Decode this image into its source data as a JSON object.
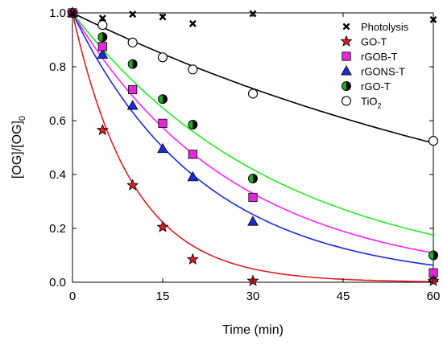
{
  "chart_data": {
    "type": "scatter",
    "xlabel": "Time (min)",
    "ylabel": {
      "main": "[OG]/[OG]",
      "sub": "0"
    },
    "xlim": [
      0,
      60
    ],
    "ylim": [
      0,
      1.0
    ],
    "xticks": [
      0,
      15,
      30,
      45,
      60
    ],
    "xtick_labels": [
      "0",
      "15",
      "30",
      "45",
      "60"
    ],
    "yticks": [
      0,
      0.2,
      0.4,
      0.6,
      0.8,
      1.0
    ],
    "ytick_labels": [
      "0.0",
      "0.2",
      "0.4",
      "0.6",
      "0.8",
      "1.0"
    ],
    "grid": false,
    "legend_position": "top-right",
    "series": [
      {
        "name": "Photolysis",
        "label_main": "Photolysis",
        "label_sub": "",
        "marker": "x",
        "color": "#000000",
        "fit": null,
        "x": [
          0,
          5,
          10,
          15,
          20,
          30,
          60
        ],
        "y": [
          1.0,
          0.98,
          0.995,
          0.985,
          0.96,
          0.997,
          0.975
        ]
      },
      {
        "name": "GO-T",
        "label_main": "GO-T",
        "label_sub": "",
        "marker": "star",
        "color": "#d42020",
        "fit": 0.1,
        "x": [
          0,
          5,
          10,
          15,
          20,
          30,
          60
        ],
        "y": [
          1.0,
          0.565,
          0.36,
          0.205,
          0.085,
          0.005,
          0.005
        ]
      },
      {
        "name": "rGOB-T",
        "label_main": "rGOB-T",
        "label_sub": "",
        "marker": "square",
        "color": "#e02ad6",
        "fit": 0.037,
        "x": [
          0,
          5,
          10,
          15,
          20,
          30,
          60
        ],
        "y": [
          1.0,
          0.875,
          0.715,
          0.59,
          0.475,
          0.315,
          0.035
        ]
      },
      {
        "name": "rGONS-T",
        "label_main": "rGONS-T",
        "label_sub": "",
        "marker": "triangle",
        "color": "#1a2ad6",
        "fit": 0.046,
        "x": [
          0,
          5,
          10,
          15,
          20,
          30,
          60
        ],
        "y": [
          1.0,
          0.845,
          0.655,
          0.495,
          0.39,
          0.225,
          0.015
        ]
      },
      {
        "name": "rGO-T",
        "label_main": "rGO-T",
        "label_sub": "",
        "marker": "half-circle",
        "color": "#19b019",
        "fit": 0.029,
        "x": [
          0,
          5,
          10,
          15,
          20,
          30,
          60
        ],
        "y": [
          1.0,
          0.91,
          0.81,
          0.68,
          0.585,
          0.385,
          0.1
        ]
      },
      {
        "name": "TiO2",
        "label_main": "TiO",
        "label_sub": "2",
        "marker": "open-circle",
        "color": "#000000",
        "fit": 0.011,
        "x": [
          0,
          5,
          10,
          15,
          20,
          30,
          60
        ],
        "y": [
          1.0,
          0.955,
          0.89,
          0.835,
          0.79,
          0.7,
          0.525
        ]
      }
    ],
    "fit_colors": {
      "GO-T": "#e02020",
      "rGOB-T": "#ff22ff",
      "rGONS-T": "#1a2ae0",
      "rGO-T": "#22ee22",
      "TiO2": "#000000"
    }
  }
}
